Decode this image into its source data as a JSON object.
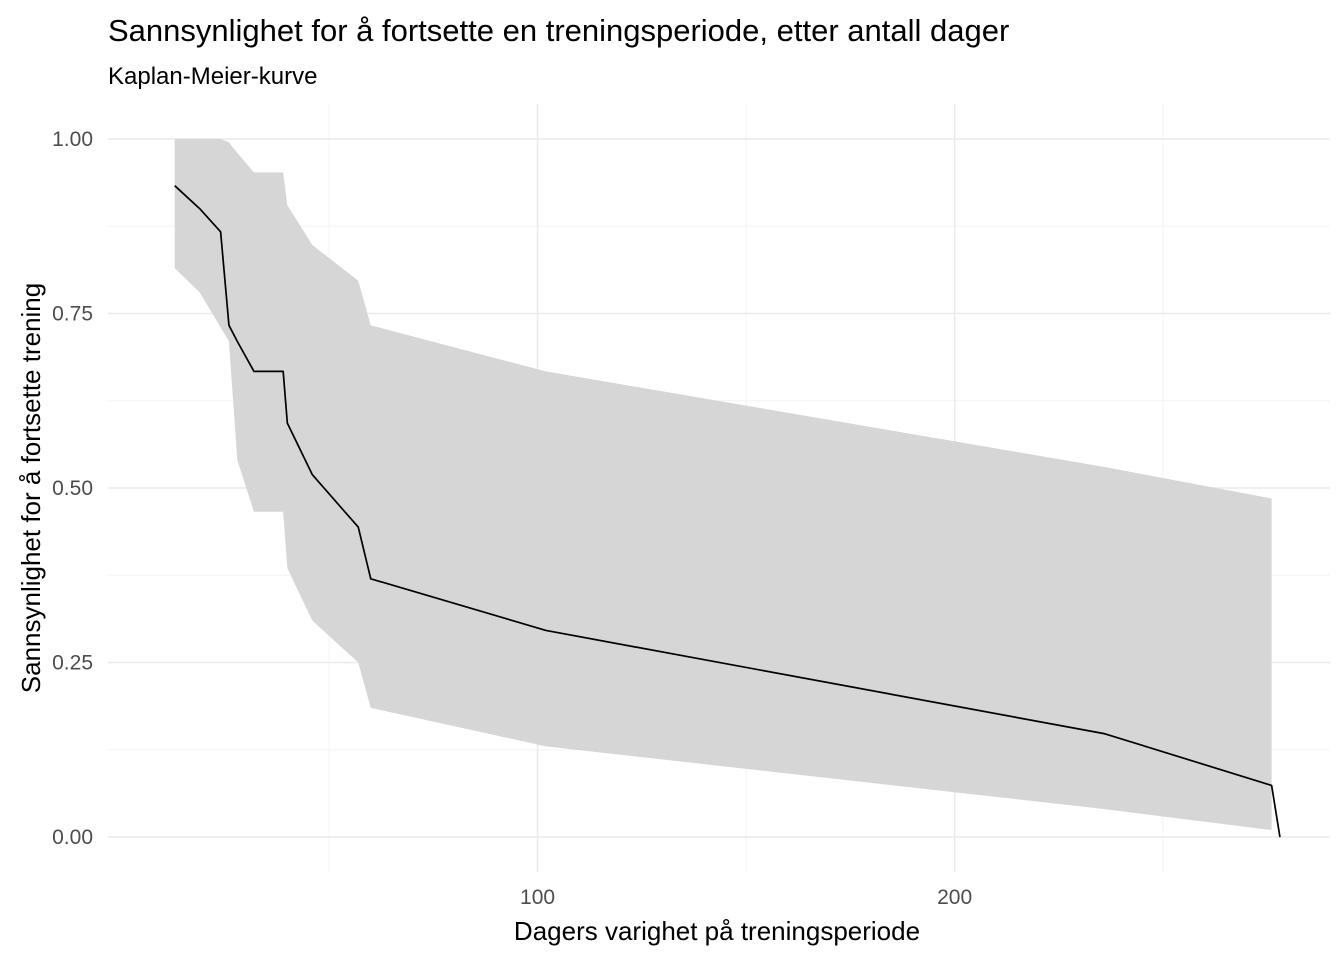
{
  "chart_data": {
    "type": "line",
    "title": "Sannsynlighet for å fortsette en treningsperiode, etter antall dager",
    "subtitle": "Kaplan-Meier-kurve",
    "xlabel": "Dagers varighet på treningsperiode",
    "ylabel": "Sannsynlighet for å fortsette trening",
    "xlim": [
      -3,
      290
    ],
    "ylim": [
      -0.05,
      1.05
    ],
    "x_ticks": [
      100,
      200
    ],
    "x_tick_labels": [
      "100",
      "200"
    ],
    "x_minor_ticks": [
      50,
      150,
      250
    ],
    "y_ticks": [
      0,
      0.25,
      0.5,
      0.75,
      1.0
    ],
    "y_tick_labels": [
      "0.00",
      "0.25",
      "0.50",
      "0.75",
      "1.00"
    ],
    "y_minor_ticks": [
      0.125,
      0.375,
      0.625,
      0.875
    ],
    "grid": true,
    "colors": {
      "line": "#000000",
      "ribbon": "#d6d6d6",
      "grid": "#ebebeb"
    },
    "series": [
      {
        "x": [
          13,
          19,
          24,
          26,
          28,
          32,
          39,
          40,
          46,
          57,
          60,
          102,
          236,
          276,
          278
        ],
        "y": [
          0.933,
          0.9,
          0.867,
          0.733,
          0.71,
          0.667,
          0.667,
          0.593,
          0.519,
          0.444,
          0.37,
          0.296,
          0.148,
          0.074,
          0.0
        ],
        "lower": [
          0.815,
          0.78,
          0.73,
          0.71,
          0.54,
          0.466,
          0.466,
          0.385,
          0.31,
          0.25,
          0.185,
          0.13,
          0.04,
          0.01,
          null
        ],
        "upper": [
          1.0,
          1.0,
          1.0,
          0.995,
          0.98,
          0.952,
          0.952,
          0.905,
          0.848,
          0.797,
          0.733,
          0.667,
          0.53,
          0.485,
          null
        ]
      }
    ]
  }
}
